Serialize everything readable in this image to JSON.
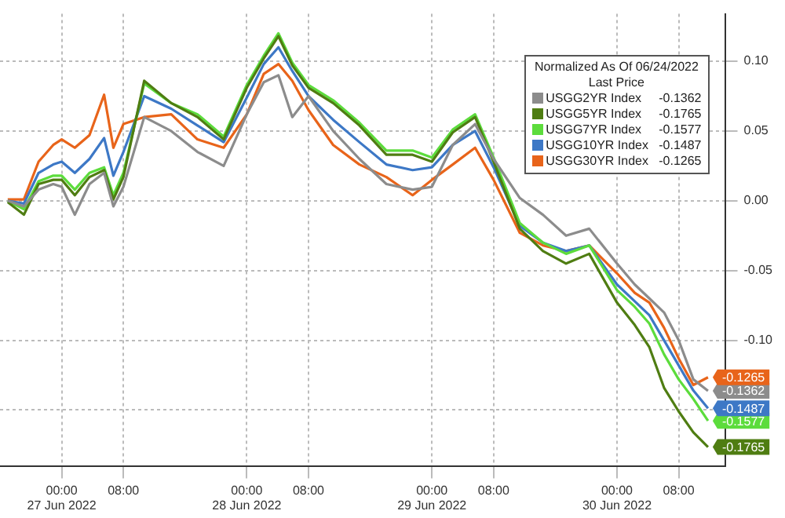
{
  "chart_data": {
    "type": "line",
    "legend_title": "Normalized As Of 06/24/2022\nLast Price",
    "legend": "top right",
    "grid": true,
    "marker": "none",
    "line_style": "solid",
    "x": [
      "2022-06-26T17:00",
      "2022-06-26T19:06",
      "2022-06-26T21:00",
      "2022-06-26T22:54",
      "2022-06-27T00:00",
      "2022-06-27T01:42",
      "2022-06-27T03:36",
      "2022-06-27T05:30",
      "2022-06-27T06:42",
      "2022-06-27T08:00",
      "2022-06-27T10:42",
      "2022-06-27T14:12",
      "2022-06-27T17:36",
      "2022-06-27T21:00",
      "2022-06-28T00:00",
      "2022-06-28T02:12",
      "2022-06-28T04:06",
      "2022-06-28T05:54",
      "2022-06-28T08:00",
      "2022-06-28T11:12",
      "2022-06-28T14:36",
      "2022-06-28T18:06",
      "2022-06-28T21:30",
      "2022-06-29T00:00",
      "2022-06-29T02:42",
      "2022-06-29T05:36",
      "2022-06-29T08:00",
      "2022-06-29T11:24",
      "2022-06-29T14:24",
      "2022-06-29T17:24",
      "2022-06-29T20:24",
      "2022-06-30T00:00",
      "2022-06-30T02:18",
      "2022-06-30T04:12",
      "2022-06-30T06:06",
      "2022-06-30T08:00",
      "2022-06-30T09:54",
      "2022-06-30T11:48"
    ],
    "xlim": [
      "2022-06-26T16:00",
      "2022-06-30T14:00"
    ],
    "xticks": [
      {
        "value": "2022-06-27T00:00",
        "label": "00:00\n27 Jun 2022"
      },
      {
        "value": "2022-06-27T08:00",
        "label": "08:00"
      },
      {
        "value": "2022-06-28T00:00",
        "label": "00:00\n28 Jun 2022"
      },
      {
        "value": "2022-06-28T08:00",
        "label": "08:00"
      },
      {
        "value": "2022-06-29T00:00",
        "label": "00:00\n29 Jun 2022"
      },
      {
        "value": "2022-06-29T08:00",
        "label": "08:00"
      },
      {
        "value": "2022-06-30T00:00",
        "label": "00:00\n30 Jun 2022"
      },
      {
        "value": "2022-06-30T08:00",
        "label": "08:00"
      }
    ],
    "ylim": [
      -0.19,
      0.134
    ],
    "yticks": [
      {
        "value": -0.15,
        "label": null
      },
      {
        "value": -0.1,
        "label": "-0.10"
      },
      {
        "value": -0.05,
        "label": "-0.05"
      },
      {
        "value": 0,
        "label": "0.00"
      },
      {
        "value": 0.05,
        "label": "0.05"
      },
      {
        "value": 0.1,
        "label": "0.10"
      }
    ],
    "series": [
      {
        "name": "USGG2YR Index",
        "color": "#8c8c8c",
        "values": [
          0.0,
          -0.004,
          0.008,
          0.012,
          0.01,
          -0.01,
          0.012,
          0.02,
          -0.004,
          0.01,
          0.06,
          0.05,
          0.035,
          0.025,
          0.062,
          0.085,
          0.09,
          0.06,
          0.075,
          0.05,
          0.03,
          0.012,
          0.008,
          0.01,
          0.04,
          0.055,
          0.03,
          0.002,
          -0.01,
          -0.025,
          -0.02,
          -0.045,
          -0.06,
          -0.07,
          -0.08,
          -0.1,
          -0.128,
          -0.1362
        ],
        "value_labels": [
          null,
          null,
          null,
          null,
          null,
          null,
          null,
          null,
          null,
          null,
          null,
          null,
          null,
          null,
          null,
          null,
          null,
          null,
          null,
          null,
          null,
          null,
          null,
          null,
          null,
          null,
          null,
          null,
          null,
          null,
          null,
          null,
          null,
          null,
          null,
          null,
          null,
          "-0.1362"
        ]
      },
      {
        "name": "USGG5YR Index",
        "color": "#4f7d12",
        "values": [
          -0.001,
          -0.01,
          0.012,
          0.015,
          0.015,
          0.004,
          0.017,
          0.022,
          0.001,
          0.017,
          0.086,
          0.07,
          0.06,
          0.044,
          0.081,
          0.102,
          0.118,
          0.097,
          0.081,
          0.07,
          0.054,
          0.033,
          0.033,
          0.028,
          0.049,
          0.06,
          0.028,
          -0.02,
          -0.036,
          -0.045,
          -0.038,
          -0.073,
          -0.089,
          -0.105,
          -0.134,
          -0.151,
          -0.166,
          -0.1765
        ],
        "value_labels": [
          null,
          null,
          null,
          null,
          null,
          null,
          null,
          null,
          null,
          null,
          null,
          null,
          null,
          null,
          null,
          null,
          null,
          null,
          null,
          null,
          null,
          null,
          null,
          null,
          null,
          null,
          null,
          null,
          null,
          null,
          null,
          null,
          null,
          null,
          null,
          null,
          null,
          "-0.1765"
        ]
      },
      {
        "name": "USGG7YR Index",
        "color": "#5cdc3c",
        "values": [
          0.0,
          -0.006,
          0.014,
          0.018,
          0.018,
          0.008,
          0.02,
          0.024,
          0.004,
          0.02,
          0.084,
          0.07,
          0.062,
          0.046,
          0.083,
          0.104,
          0.12,
          0.099,
          0.083,
          0.072,
          0.056,
          0.036,
          0.036,
          0.031,
          0.051,
          0.062,
          0.031,
          -0.016,
          -0.03,
          -0.038,
          -0.032,
          -0.064,
          -0.076,
          -0.088,
          -0.11,
          -0.128,
          -0.142,
          -0.1577
        ],
        "value_labels": [
          null,
          null,
          null,
          null,
          null,
          null,
          null,
          null,
          null,
          null,
          null,
          null,
          null,
          null,
          null,
          null,
          null,
          null,
          null,
          null,
          null,
          null,
          null,
          null,
          null,
          null,
          null,
          null,
          null,
          null,
          null,
          null,
          null,
          null,
          null,
          null,
          null,
          "-0.1577"
        ]
      },
      {
        "name": "USGG10YR Index",
        "color": "#3d78c6",
        "values": [
          0.0,
          -0.002,
          0.02,
          0.026,
          0.028,
          0.02,
          0.03,
          0.045,
          0.018,
          0.035,
          0.075,
          0.066,
          0.054,
          0.042,
          0.074,
          0.098,
          0.11,
          0.093,
          0.075,
          0.058,
          0.042,
          0.026,
          0.022,
          0.024,
          0.04,
          0.05,
          0.024,
          -0.018,
          -0.03,
          -0.036,
          -0.032,
          -0.06,
          -0.072,
          -0.082,
          -0.1,
          -0.118,
          -0.136,
          -0.1487
        ],
        "value_labels": [
          null,
          null,
          null,
          null,
          null,
          null,
          null,
          null,
          null,
          null,
          null,
          null,
          null,
          null,
          null,
          null,
          null,
          null,
          null,
          null,
          null,
          null,
          null,
          null,
          null,
          null,
          null,
          null,
          null,
          null,
          null,
          null,
          null,
          null,
          null,
          null,
          null,
          "-0.1487"
        ]
      },
      {
        "name": "USGG30YR Index",
        "color": "#e8641a",
        "values": [
          0.001,
          0.001,
          0.028,
          0.04,
          0.044,
          0.038,
          0.047,
          0.076,
          0.038,
          0.055,
          0.06,
          0.062,
          0.044,
          0.038,
          0.062,
          0.091,
          0.098,
          0.086,
          0.065,
          0.04,
          0.026,
          0.017,
          0.004,
          0.015,
          0.026,
          0.038,
          0.015,
          -0.023,
          -0.032,
          -0.036,
          -0.032,
          -0.052,
          -0.066,
          -0.073,
          -0.091,
          -0.113,
          -0.132,
          -0.1265
        ],
        "value_labels": [
          null,
          null,
          null,
          null,
          null,
          null,
          null,
          null,
          null,
          null,
          null,
          null,
          null,
          null,
          null,
          null,
          null,
          null,
          null,
          null,
          null,
          null,
          null,
          null,
          null,
          null,
          null,
          null,
          null,
          null,
          null,
          null,
          null,
          null,
          null,
          null,
          null,
          "-0.1265"
        ]
      }
    ]
  }
}
